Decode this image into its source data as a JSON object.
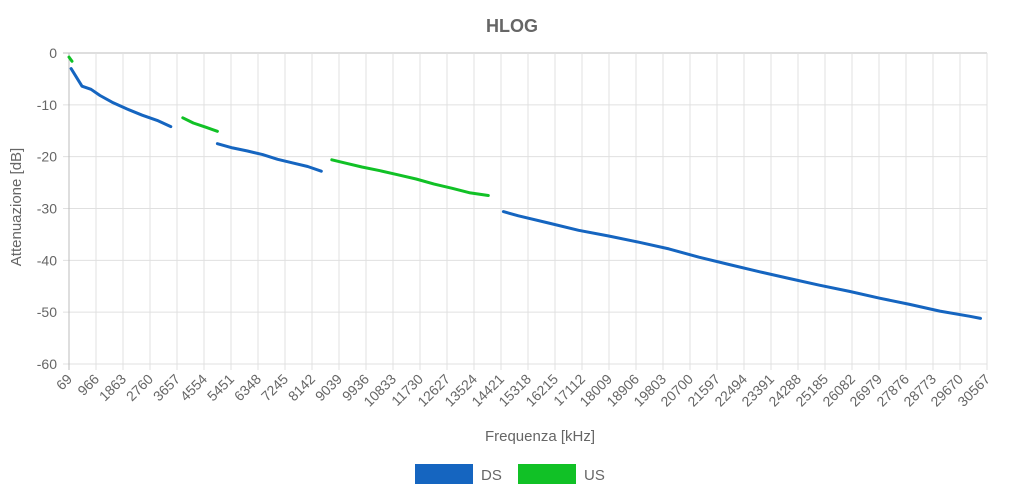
{
  "chart_data": {
    "type": "line",
    "title": "HLOG",
    "xlabel": "Frequenza [kHz]",
    "ylabel": "Attenuazione [dB]",
    "xlim": [
      69,
      30567
    ],
    "ylim": [
      -60,
      0
    ],
    "x_ticks": [
      "69",
      "966",
      "1863",
      "2760",
      "3657",
      "4554",
      "5451",
      "6348",
      "7245",
      "8142",
      "9039",
      "9936",
      "10833",
      "11730",
      "12627",
      "13524",
      "14421",
      "15318",
      "16215",
      "17112",
      "18009",
      "18906",
      "19803",
      "20700",
      "21597",
      "22494",
      "23391",
      "24288",
      "25185",
      "26082",
      "26979",
      "27876",
      "28773",
      "29670",
      "30567"
    ],
    "y_ticks": [
      "0",
      "-10",
      "-20",
      "-30",
      "-40",
      "-50",
      "-60"
    ],
    "grid": true,
    "legend_position": "bottom",
    "colors": {
      "DS": "#1565C0",
      "US": "#11C126"
    },
    "series": [
      {
        "name": "DS",
        "segments": [
          [
            [
              138,
              -3
            ],
            [
              350,
              -5
            ],
            [
              500,
              -6.4
            ],
            [
              800,
              -7
            ],
            [
              1100,
              -8.2
            ],
            [
              1500,
              -9.5
            ],
            [
              2000,
              -10.8
            ],
            [
              2500,
              -12
            ],
            [
              3000,
              -13
            ],
            [
              3450,
              -14.2
            ]
          ],
          [
            [
              5000,
              -17.5
            ],
            [
              5500,
              -18.3
            ],
            [
              6000,
              -18.9
            ],
            [
              6500,
              -19.6
            ],
            [
              7000,
              -20.5
            ],
            [
              7500,
              -21.2
            ],
            [
              8000,
              -21.9
            ],
            [
              8450,
              -22.8
            ]
          ],
          [
            [
              14500,
              -30.6
            ],
            [
              15000,
              -31.4
            ],
            [
              16000,
              -32.8
            ],
            [
              17000,
              -34.2
            ],
            [
              18000,
              -35.3
            ],
            [
              19000,
              -36.5
            ],
            [
              20000,
              -37.8
            ],
            [
              21000,
              -39.4
            ],
            [
              22000,
              -40.8
            ],
            [
              23000,
              -42.2
            ],
            [
              24000,
              -43.5
            ],
            [
              25000,
              -44.8
            ],
            [
              26000,
              -46
            ],
            [
              27000,
              -47.3
            ],
            [
              28000,
              -48.5
            ],
            [
              29000,
              -49.8
            ],
            [
              30000,
              -50.8
            ],
            [
              30350,
              -51.2
            ]
          ]
        ]
      },
      {
        "name": "US",
        "segments": [
          [
            [
              69,
              -0.8
            ],
            [
              170,
              -1.6
            ]
          ],
          [
            [
              3850,
              -12.5
            ],
            [
              4200,
              -13.5
            ],
            [
              4600,
              -14.3
            ],
            [
              5000,
              -15.1
            ]
          ],
          [
            [
              8800,
              -20.6
            ],
            [
              9300,
              -21.3
            ],
            [
              9800,
              -22
            ],
            [
              10400,
              -22.7
            ],
            [
              11000,
              -23.5
            ],
            [
              11600,
              -24.3
            ],
            [
              12200,
              -25.3
            ],
            [
              12800,
              -26.1
            ],
            [
              13400,
              -27
            ],
            [
              14000,
              -27.5
            ]
          ]
        ]
      }
    ]
  }
}
